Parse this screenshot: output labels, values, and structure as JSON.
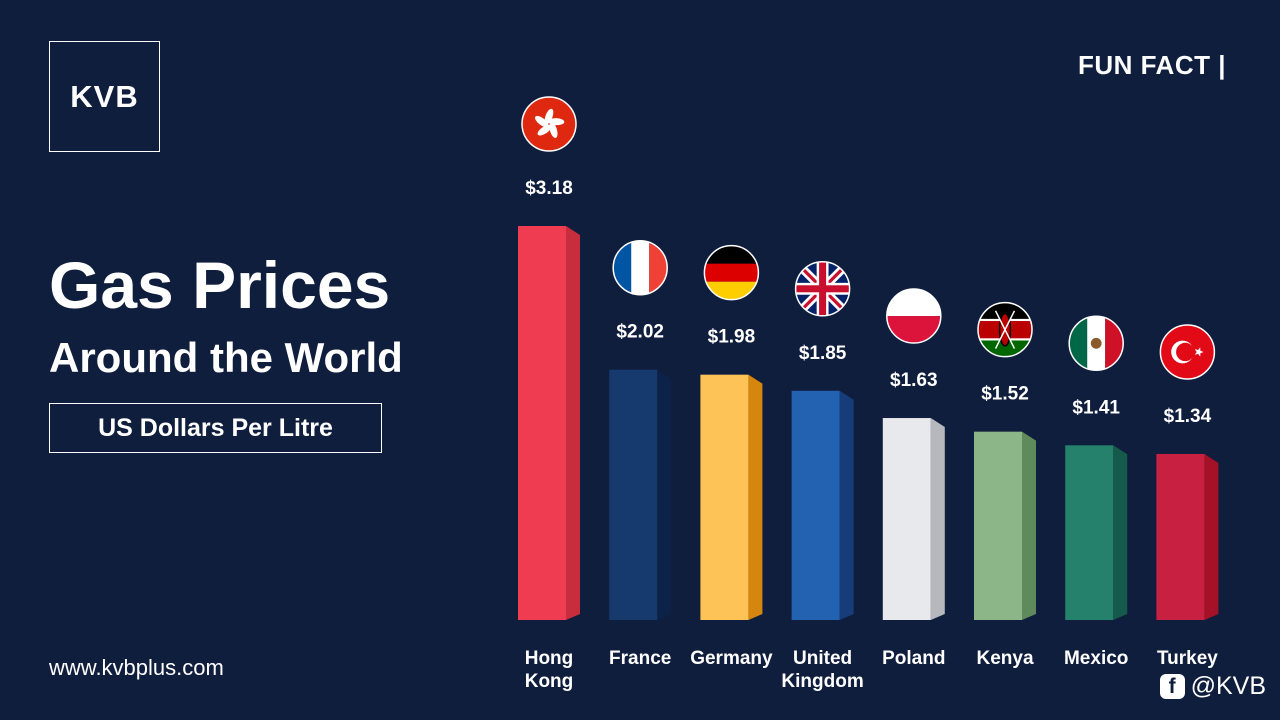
{
  "brand": {
    "logo_text": "KVB"
  },
  "header": {
    "fun_fact": "FUN FACT  |"
  },
  "title": "Gas Prices",
  "subtitle": "Around the World",
  "unit_label": "US Dollars Per Litre",
  "footer": {
    "website": "www.kvbplus.com",
    "social_handle": "@KVB",
    "social_icon": "facebook-icon"
  },
  "chart_data": {
    "type": "bar",
    "categories": [
      "Hong Kong",
      "France",
      "Germany",
      "United Kingdom",
      "Poland",
      "Kenya",
      "Mexico",
      "Turkey"
    ],
    "category_lines": [
      [
        "Hong",
        "Kong"
      ],
      [
        "France"
      ],
      [
        "Germany"
      ],
      [
        "United",
        "Kingdom"
      ],
      [
        "Poland"
      ],
      [
        "Kenya"
      ],
      [
        "Mexico"
      ],
      [
        "Turkey"
      ]
    ],
    "values": [
      3.18,
      2.02,
      1.98,
      1.85,
      1.63,
      1.52,
      1.41,
      1.34
    ],
    "value_labels": [
      "$3.18",
      "$2.02",
      "$1.98",
      "$1.85",
      "$1.63",
      "$1.52",
      "$1.41",
      "$1.34"
    ],
    "flags": [
      "hong-kong-flag-icon",
      "france-flag-icon",
      "germany-flag-icon",
      "united-kingdom-flag-icon",
      "poland-flag-icon",
      "kenya-flag-icon",
      "mexico-flag-icon",
      "turkey-flag-icon"
    ],
    "colors": [
      "#f03c50",
      "#163a6e",
      "#fdc357",
      "#2262b0",
      "#e8e9ed",
      "#8db688",
      "#25806c",
      "#c82040"
    ],
    "side_colors": [
      "#c82d3d",
      "#0c2248",
      "#d5860e",
      "#163d7a",
      "#b6b8bd",
      "#5f8a5b",
      "#165a4b",
      "#a51228"
    ],
    "ylim": [
      0,
      3.18
    ],
    "grid": false,
    "legend": "none"
  }
}
